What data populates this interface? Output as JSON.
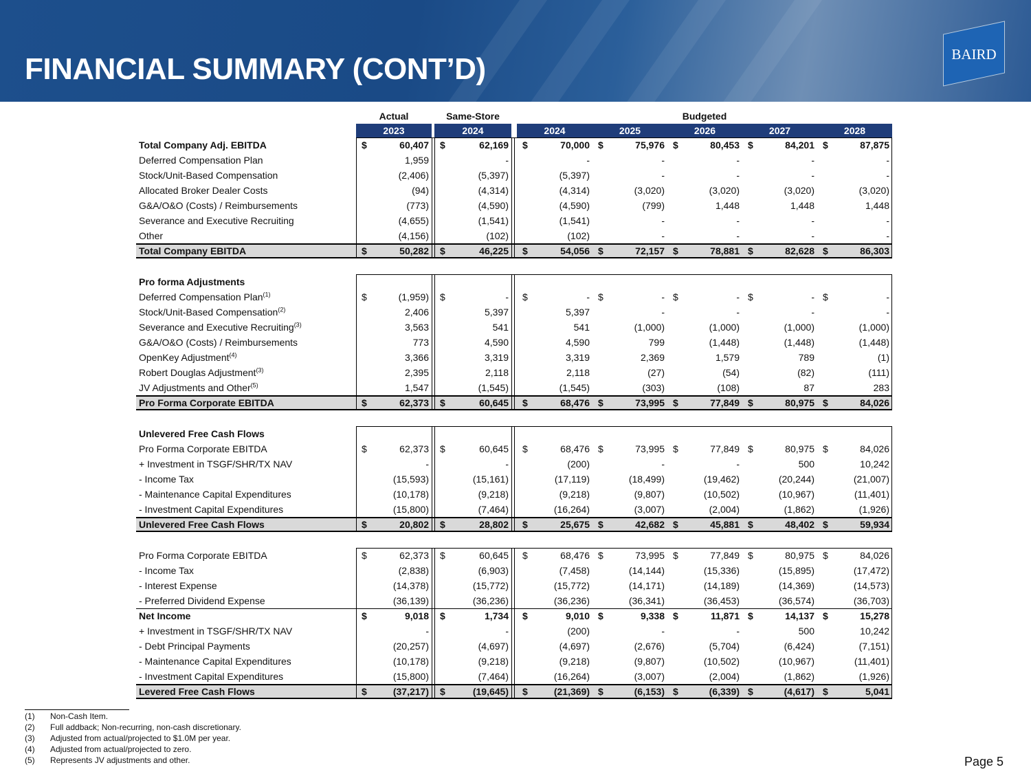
{
  "header": {
    "title": "FINANCIAL SUMMARY (CONT’D)",
    "logo": "BAIRD"
  },
  "table": {
    "column_groups": [
      {
        "label": "Actual",
        "span": 1
      },
      {
        "label": "Same-Store",
        "span": 1
      },
      {
        "label": "Budgeted",
        "span": 5
      }
    ],
    "columns": [
      "2023",
      "2024",
      "2024",
      "2025",
      "2026",
      "2027",
      "2028"
    ],
    "currency_symbol": "$",
    "sections": [
      {
        "rows": [
          {
            "label": "Total Company Adj. EBITDA",
            "style": "bold",
            "dollar": true,
            "values": [
              "60,407",
              "62,169",
              "70,000",
              "75,976",
              "80,453",
              "84,201",
              "87,875"
            ]
          },
          {
            "label": "Deferred Compensation Plan",
            "values": [
              "1,959",
              "-",
              "-",
              "-",
              "-",
              "-",
              "-"
            ]
          },
          {
            "label": "Stock/Unit-Based Compensation",
            "values": [
              "(2,406)",
              "(5,397)",
              "(5,397)",
              "-",
              "-",
              "-",
              "-"
            ]
          },
          {
            "label": "Allocated Broker Dealer Costs",
            "values": [
              "(94)",
              "(4,314)",
              "(4,314)",
              "(3,020)",
              "(3,020)",
              "(3,020)",
              "(3,020)"
            ]
          },
          {
            "label": "G&A/O&O (Costs) / Reimbursements",
            "values": [
              "(773)",
              "(4,590)",
              "(4,590)",
              "(799)",
              "1,448",
              "1,448",
              "1,448"
            ]
          },
          {
            "label": "Severance and Executive Recruiting",
            "values": [
              "(4,655)",
              "(1,541)",
              "(1,541)",
              "-",
              "-",
              "-",
              "-"
            ]
          },
          {
            "label": "Other",
            "values": [
              "(4,156)",
              "(102)",
              "(102)",
              "-",
              "-",
              "-",
              "-"
            ]
          },
          {
            "label": "Total Company EBITDA",
            "style": "total",
            "dollar": true,
            "values": [
              "50,282",
              "46,225",
              "54,056",
              "72,157",
              "78,881",
              "82,628",
              "86,303"
            ]
          }
        ]
      },
      {
        "title": "Pro forma Adjustments",
        "rows": [
          {
            "label": "Deferred Compensation Plan",
            "note": "(1)",
            "dollar": true,
            "values": [
              "(1,959)",
              "-",
              "-",
              "-",
              "-",
              "-",
              "-"
            ]
          },
          {
            "label": "Stock/Unit-Based Compensation",
            "note": "(2)",
            "values": [
              "2,406",
              "5,397",
              "5,397",
              "-",
              "-",
              "-",
              "-"
            ]
          },
          {
            "label": "Severance and Executive Recruiting",
            "note": "(3)",
            "values": [
              "3,563",
              "541",
              "541",
              "(1,000)",
              "(1,000)",
              "(1,000)",
              "(1,000)"
            ]
          },
          {
            "label": "G&A/O&O (Costs) / Reimbursements",
            "values": [
              "773",
              "4,590",
              "4,590",
              "799",
              "(1,448)",
              "(1,448)",
              "(1,448)"
            ]
          },
          {
            "label": "OpenKey Adjustment",
            "note": "(4)",
            "values": [
              "3,366",
              "3,319",
              "3,319",
              "2,369",
              "1,579",
              "789",
              "(1)"
            ]
          },
          {
            "label": "Robert Douglas Adjustment",
            "note": "(3)",
            "values": [
              "2,395",
              "2,118",
              "2,118",
              "(27)",
              "(54)",
              "(82)",
              "(111)"
            ]
          },
          {
            "label": "JV Adjustments and Other",
            "note": "(5)",
            "values": [
              "1,547",
              "(1,545)",
              "(1,545)",
              "(303)",
              "(108)",
              "87",
              "283"
            ]
          },
          {
            "label": "Pro Forma Corporate EBITDA",
            "style": "total",
            "dollar": true,
            "values": [
              "62,373",
              "60,645",
              "68,476",
              "73,995",
              "77,849",
              "80,975",
              "84,026"
            ]
          }
        ]
      },
      {
        "title": "Unlevered Free Cash Flows",
        "rows": [
          {
            "label": "Pro Forma Corporate EBITDA",
            "dollar": true,
            "values": [
              "62,373",
              "60,645",
              "68,476",
              "73,995",
              "77,849",
              "80,975",
              "84,026"
            ]
          },
          {
            "label": "+ Investment in TSGF/SHR/TX NAV",
            "values": [
              "-",
              "-",
              "(200)",
              "-",
              "-",
              "500",
              "10,242"
            ]
          },
          {
            "label": "- Income Tax",
            "values": [
              "(15,593)",
              "(15,161)",
              "(17,119)",
              "(18,499)",
              "(19,462)",
              "(20,244)",
              "(21,007)"
            ]
          },
          {
            "label": "- Maintenance Capital Expenditures",
            "values": [
              "(10,178)",
              "(9,218)",
              "(9,218)",
              "(9,807)",
              "(10,502)",
              "(10,967)",
              "(11,401)"
            ]
          },
          {
            "label": "- Investment Capital Expenditures",
            "values": [
              "(15,800)",
              "(7,464)",
              "(16,264)",
              "(3,007)",
              "(2,004)",
              "(1,862)",
              "(1,926)"
            ]
          },
          {
            "label": "Unlevered Free Cash Flows",
            "style": "total",
            "dollar": true,
            "values": [
              "20,802",
              "28,802",
              "25,675",
              "42,682",
              "45,881",
              "48,402",
              "59,934"
            ]
          }
        ]
      },
      {
        "rows": [
          {
            "label": "Pro Forma Corporate EBITDA",
            "dollar": true,
            "values": [
              "62,373",
              "60,645",
              "68,476",
              "73,995",
              "77,849",
              "80,975",
              "84,026"
            ]
          },
          {
            "label": "- Income Tax",
            "values": [
              "(2,838)",
              "(6,903)",
              "(7,458)",
              "(14,144)",
              "(15,336)",
              "(15,895)",
              "(17,472)"
            ]
          },
          {
            "label": "- Interest Expense",
            "values": [
              "(14,378)",
              "(15,772)",
              "(15,772)",
              "(14,171)",
              "(14,189)",
              "(14,369)",
              "(14,573)"
            ]
          },
          {
            "label": "- Preferred Dividend Expense",
            "values": [
              "(36,139)",
              "(36,236)",
              "(36,236)",
              "(36,341)",
              "(36,453)",
              "(36,574)",
              "(36,703)"
            ]
          },
          {
            "label": "Net Income",
            "style": "subtotal",
            "dollar": true,
            "values": [
              "9,018",
              "1,734",
              "9,010",
              "9,338",
              "11,871",
              "14,137",
              "15,278"
            ]
          },
          {
            "label": "+ Investment in TSGF/SHR/TX NAV",
            "values": [
              "-",
              "-",
              "(200)",
              "-",
              "-",
              "500",
              "10,242"
            ]
          },
          {
            "label": "- Debt Principal Payments",
            "values": [
              "(20,257)",
              "(4,697)",
              "(4,697)",
              "(2,676)",
              "(5,704)",
              "(6,424)",
              "(7,151)"
            ]
          },
          {
            "label": "- Maintenance Capital Expenditures",
            "values": [
              "(10,178)",
              "(9,218)",
              "(9,218)",
              "(9,807)",
              "(10,502)",
              "(10,967)",
              "(11,401)"
            ]
          },
          {
            "label": "- Investment Capital Expenditures",
            "values": [
              "(15,800)",
              "(7,464)",
              "(16,264)",
              "(3,007)",
              "(2,004)",
              "(1,862)",
              "(1,926)"
            ]
          },
          {
            "label": "Levered Free Cash Flows",
            "style": "total",
            "dollar": true,
            "values": [
              "(37,217)",
              "(19,645)",
              "(21,369)",
              "(6,153)",
              "(6,339)",
              "(4,617)",
              "5,041"
            ]
          }
        ]
      }
    ]
  },
  "footnotes": [
    {
      "marker": "(1)",
      "text": "Non-Cash Item."
    },
    {
      "marker": "(2)",
      "text": "Full addback; Non-recurring, non-cash discretionary."
    },
    {
      "marker": "(3)",
      "text": "Adjusted from actual/projected to $1.0M per year."
    },
    {
      "marker": "(4)",
      "text": "Adjusted from actual/projected to zero."
    },
    {
      "marker": "(5)",
      "text": "Represents JV adjustments and other."
    }
  ],
  "page": "Page 5"
}
